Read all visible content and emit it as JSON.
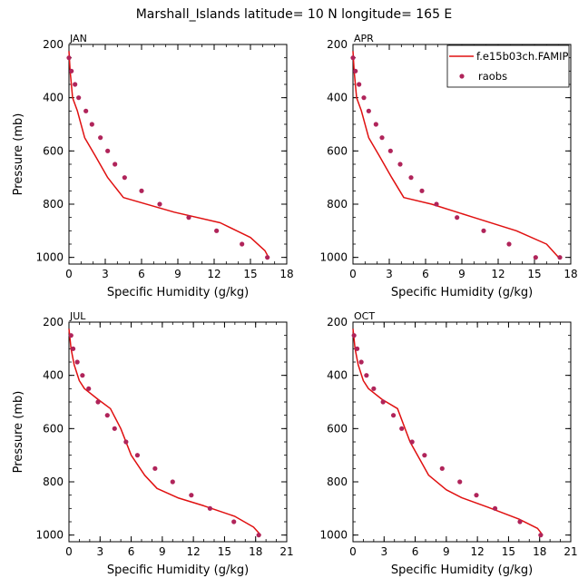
{
  "title": "Marshall_Islands  latitude= 10 N longitude= 165 E",
  "colors": {
    "model": "#e01010",
    "obs": "#b0245a",
    "axis": "#000000"
  },
  "legend": {
    "placement": "top-right",
    "model_label": "f.e15b03ch.FAMIP",
    "obs_label": "raobs"
  },
  "chart_data": [
    {
      "type": "line",
      "panel": "JAN",
      "xlabel": "Specific Humidity (g/kg)",
      "ylabel": "Pressure (mb)",
      "xlim": [
        0,
        18
      ],
      "ylim": [
        200,
        1025
      ],
      "y_inverted": true,
      "xticks": [
        0,
        3,
        6,
        9,
        12,
        15,
        18
      ],
      "yticks": [
        200,
        400,
        600,
        800,
        1000
      ],
      "series": [
        {
          "name": "f.e15b03ch.FAMIP",
          "kind": "line",
          "x": [
            0.0,
            0.1,
            0.3,
            0.7,
            1.3,
            2.2,
            3.2,
            4.5,
            8.7,
            12.5,
            15.0,
            16.2,
            16.5
          ],
          "y": [
            225,
            300,
            400,
            450,
            550,
            620,
            700,
            775,
            830,
            870,
            925,
            975,
            1000
          ]
        },
        {
          "name": "raobs",
          "kind": "scatter",
          "x": [
            0.0,
            0.2,
            0.5,
            0.8,
            1.4,
            1.9,
            2.6,
            3.2,
            3.8,
            4.6,
            6.0,
            7.5,
            9.9,
            12.2,
            14.3,
            16.4
          ],
          "y": [
            250,
            300,
            350,
            400,
            450,
            500,
            550,
            600,
            650,
            700,
            750,
            800,
            850,
            900,
            950,
            1000
          ]
        }
      ]
    },
    {
      "type": "line",
      "panel": "APR",
      "xlabel": "Specific Humidity (g/kg)",
      "ylabel": "",
      "xlim": [
        0,
        18
      ],
      "ylim": [
        200,
        1025
      ],
      "y_inverted": true,
      "xticks": [
        0,
        3,
        6,
        9,
        12,
        15,
        18
      ],
      "yticks": [
        200,
        400,
        600,
        800,
        1000
      ],
      "series": [
        {
          "name": "f.e15b03ch.FAMIP",
          "kind": "line",
          "x": [
            0.0,
            0.1,
            0.3,
            0.7,
            1.3,
            2.2,
            3.2,
            4.2,
            6.5,
            10.0,
            13.5,
            16.0,
            17.0
          ],
          "y": [
            225,
            300,
            400,
            450,
            550,
            620,
            700,
            775,
            800,
            850,
            900,
            950,
            1000
          ]
        },
        {
          "name": "raobs",
          "kind": "scatter",
          "x": [
            0.0,
            0.2,
            0.5,
            0.9,
            1.3,
            1.9,
            2.4,
            3.1,
            3.9,
            4.8,
            5.7,
            6.9,
            8.6,
            10.8,
            12.9,
            15.1,
            17.1
          ],
          "y": [
            250,
            300,
            350,
            400,
            450,
            500,
            550,
            600,
            650,
            700,
            750,
            800,
            850,
            900,
            950,
            1000,
            1000
          ]
        }
      ]
    },
    {
      "type": "line",
      "panel": "JUL",
      "xlabel": "Specific Humidity (g/kg)",
      "ylabel": "Pressure (mb)",
      "xlim": [
        0,
        21
      ],
      "ylim": [
        200,
        1025
      ],
      "y_inverted": true,
      "xticks": [
        0,
        3,
        6,
        9,
        12,
        15,
        18,
        21
      ],
      "yticks": [
        200,
        400,
        600,
        800,
        1000
      ],
      "series": [
        {
          "name": "f.e15b03ch.FAMIP",
          "kind": "line",
          "x": [
            0.0,
            0.2,
            0.5,
            1.0,
            1.5,
            2.8,
            4.0,
            5.0,
            6.0,
            7.3,
            8.5,
            10.5,
            13.0,
            16.0,
            17.8,
            18.5
          ],
          "y": [
            225,
            300,
            360,
            420,
            450,
            490,
            525,
            600,
            700,
            775,
            825,
            860,
            890,
            930,
            970,
            1000
          ]
        },
        {
          "name": "raobs",
          "kind": "scatter",
          "x": [
            0.2,
            0.4,
            0.8,
            1.3,
            1.9,
            2.8,
            3.7,
            4.4,
            5.5,
            6.6,
            8.3,
            10.0,
            11.8,
            13.6,
            15.9,
            18.3
          ],
          "y": [
            250,
            300,
            350,
            400,
            450,
            500,
            550,
            600,
            650,
            700,
            750,
            800,
            850,
            900,
            950,
            1000
          ]
        }
      ]
    },
    {
      "type": "line",
      "panel": "OCT",
      "xlabel": "Specific Humidity (g/kg)",
      "ylabel": "",
      "xlim": [
        0,
        21
      ],
      "ylim": [
        200,
        1025
      ],
      "y_inverted": true,
      "xticks": [
        0,
        3,
        6,
        9,
        12,
        15,
        18,
        21
      ],
      "yticks": [
        200,
        400,
        600,
        800,
        1000
      ],
      "series": [
        {
          "name": "f.e15b03ch.FAMIP",
          "kind": "line",
          "x": [
            0.0,
            0.2,
            0.5,
            1.0,
            1.5,
            2.8,
            4.3,
            5.5,
            7.3,
            9.0,
            10.5,
            13.0,
            16.0,
            17.8,
            18.3
          ],
          "y": [
            225,
            300,
            360,
            420,
            450,
            490,
            525,
            650,
            775,
            830,
            860,
            895,
            940,
            975,
            1000
          ]
        },
        {
          "name": "raobs",
          "kind": "scatter",
          "x": [
            0.1,
            0.4,
            0.8,
            1.3,
            2.0,
            2.9,
            3.9,
            4.7,
            5.7,
            6.9,
            8.6,
            10.3,
            11.9,
            13.7,
            16.1,
            18.1
          ],
          "y": [
            250,
            300,
            350,
            400,
            450,
            500,
            550,
            600,
            650,
            700,
            750,
            800,
            850,
            900,
            950,
            1000
          ]
        }
      ]
    }
  ]
}
